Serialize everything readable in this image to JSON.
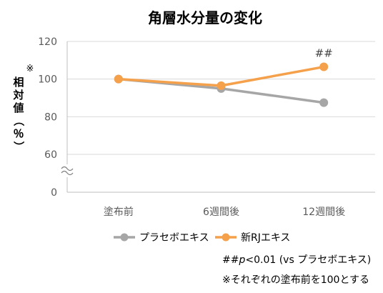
{
  "chart_data": {
    "type": "line",
    "title": "角層水分量の変化",
    "ylabel": "相対値（％）",
    "ylabel_mark": "※",
    "categories": [
      "塗布前",
      "6週間後",
      "12週間後"
    ],
    "yticks": [
      "120",
      "100",
      "80",
      "60",
      "0"
    ],
    "ylim_display": [
      60,
      120
    ],
    "axis_break": true,
    "grid": true,
    "legend_position": "bottom",
    "series": [
      {
        "name": "プラセボエキス",
        "color": "#a6a6a6",
        "values": [
          100,
          95,
          87.5
        ]
      },
      {
        "name": "新RJエキス",
        "color": "#f5a04b",
        "values": [
          100,
          96.5,
          106.5
        ]
      }
    ],
    "annotations": [
      {
        "text": "##",
        "category_index": 2,
        "series_index": 1
      }
    ]
  },
  "footnotes": {
    "significance_prefix": "##",
    "significance_p": "p",
    "significance_rest": "<0.01 (vs プラセボエキス)",
    "baseline": "※それぞれの塗布前を100とする"
  }
}
